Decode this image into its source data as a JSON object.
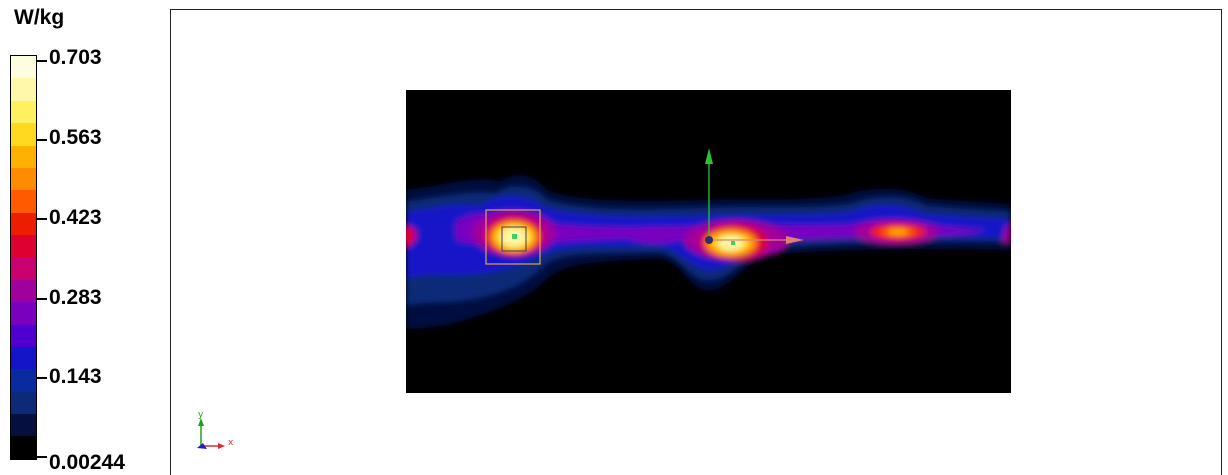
{
  "legend": {
    "unit": "W/kg",
    "labels": [
      "0.703",
      "0.563",
      "0.423",
      "0.283",
      "0.143",
      "0.00244"
    ],
    "colors": [
      "#fffde0",
      "#fff8a8",
      "#fff060",
      "#ffd820",
      "#ffb000",
      "#ff8c00",
      "#ff5a00",
      "#ee1c00",
      "#dd0030",
      "#c80070",
      "#a0009c",
      "#7a00c0",
      "#4e00d0",
      "#1414c8",
      "#0a2aa0",
      "#0c2a78",
      "#061040",
      "#000000"
    ]
  },
  "axis_triad": {
    "x_label": "x",
    "y_label": "y"
  }
}
